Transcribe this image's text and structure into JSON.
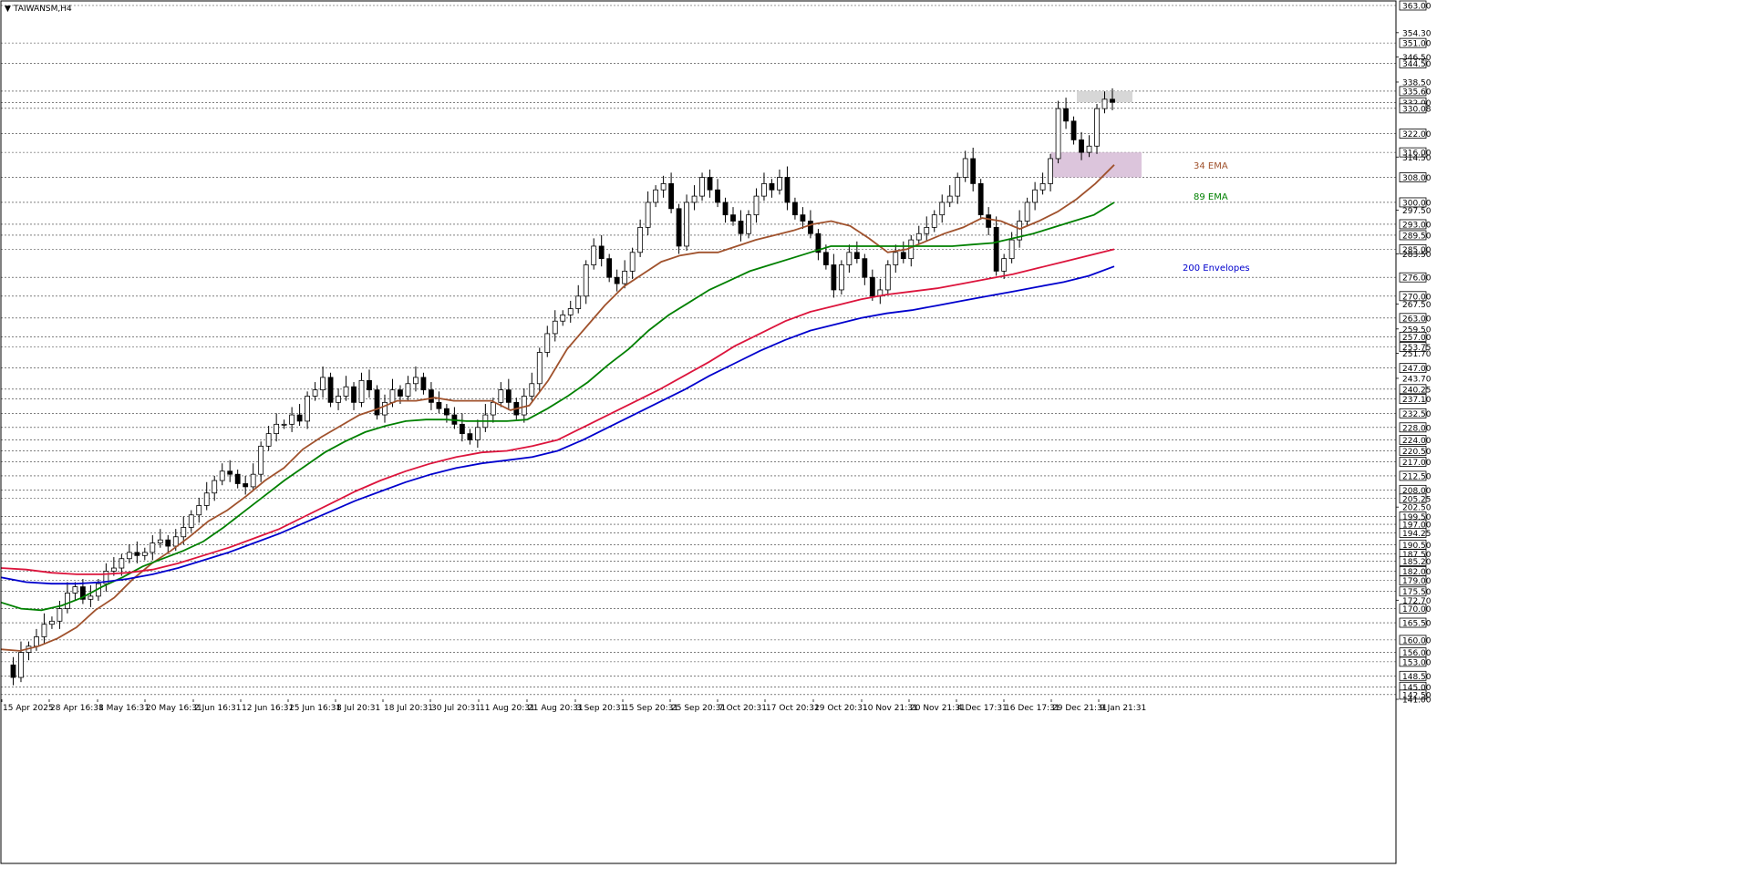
{
  "chart_data": {
    "type": "candlestick",
    "title": "TAIWANSM,H4",
    "y_range": [
      141.0,
      363.0
    ],
    "x_labels": [
      "15 Apr 2025",
      "28 Apr 16:31",
      "8 May 16:31",
      "20 May 16:31",
      "2 Jun 16:31",
      "12 Jun 16:31",
      "25 Jun 16:31",
      "8 Jul 20:31",
      "18 Jul 20:31",
      "30 Jul 20:31",
      "11 Aug 20:31",
      "21 Aug 20:31",
      "3 Sep 20:31",
      "15 Sep 20:31",
      "25 Sep 20:31",
      "7 Oct 20:31",
      "17 Oct 20:31",
      "29 Oct 20:31",
      "10 Nov 21:31",
      "20 Nov 21:31",
      "4 Dec 17:31",
      "16 Dec 17:31",
      "29 Dec 21:31",
      "9 Jan 21:31"
    ],
    "levels": [
      "363.00",
      "351.00",
      "344.50",
      "335.60",
      "332.00",
      "330.08",
      "322.00",
      "316.00",
      "308.00",
      "300.00",
      "293.00",
      "289.50",
      "285.00",
      "276.00",
      "270.00",
      "263.00",
      "257.00",
      "253.75",
      "247.00",
      "240.25",
      "237.10",
      "232.50",
      "228.00",
      "224.00",
      "220.50",
      "217.00",
      "212.50",
      "208.00",
      "205.25",
      "199.50",
      "197.00",
      "194.25",
      "190.50",
      "187.50",
      "185.20",
      "182.00",
      "179.00",
      "175.50",
      "170.00",
      "165.50",
      "160.00",
      "156.00",
      "153.00",
      "148.50",
      "145.00",
      "142.50"
    ],
    "minor_labels": [
      "354.30",
      "346.50",
      "338.50",
      "314.50",
      "297.50",
      "283.50",
      "267.50",
      "259.50",
      "251.70",
      "243.70",
      "202.50",
      "172.70",
      "141.00"
    ],
    "zones": [
      {
        "name": "resistance",
        "from": 332.0,
        "to": 335.6,
        "color": "#d3d3d3"
      },
      {
        "name": "support",
        "from": 308.0,
        "to": 316.0,
        "color": "#d8bfd8"
      }
    ],
    "series": [
      {
        "name": "34 EMA",
        "color": "#a0522d",
        "values": [
          157,
          156.5,
          158,
          160.5,
          164,
          169.5,
          173.5,
          179.5,
          184.5,
          188.5,
          193,
          198,
          201.5,
          206,
          211,
          215,
          221,
          225,
          228.5,
          232,
          234,
          236.5,
          236.5,
          237.5,
          236.5,
          236.5,
          236.5,
          233.5,
          235,
          243,
          253,
          260,
          267,
          273,
          277,
          281,
          283,
          284,
          284,
          286,
          288,
          289.5,
          291,
          293,
          294,
          292.5,
          288.5,
          284,
          285,
          287.5,
          290,
          292,
          295,
          294,
          291.5,
          294,
          297,
          301,
          306,
          312
        ]
      },
      {
        "name": "89 EMA",
        "color": "#008000",
        "values": [
          172,
          170,
          169.5,
          171,
          173.5,
          177,
          180,
          183.5,
          186,
          188.5,
          191.5,
          196,
          201,
          206,
          211,
          215.5,
          220,
          223.5,
          226.5,
          228.5,
          230,
          230.5,
          230.5,
          230,
          230,
          230,
          230.5,
          234,
          238,
          242.5,
          248,
          253,
          259,
          264,
          268,
          272,
          275,
          278,
          280,
          282,
          284,
          286,
          286,
          286,
          286,
          286,
          286,
          286,
          286.5,
          287,
          288.5,
          290,
          292,
          294,
          296,
          300
        ]
      },
      {
        "name": "200 Envelopes upper",
        "color": "#dc143c",
        "values": [
          183,
          182.5,
          181.5,
          181,
          181,
          181.5,
          182.5,
          184.5,
          187,
          189.5,
          192.5,
          195.5,
          199.5,
          203.5,
          207.5,
          211,
          214,
          216.5,
          218.5,
          220,
          220.5,
          222,
          224,
          228,
          232,
          236,
          240,
          244.5,
          249,
          254,
          258,
          262,
          265,
          267,
          269,
          270.5,
          271.5,
          272.5,
          274,
          275.5,
          277,
          279,
          281,
          283,
          285
        ]
      },
      {
        "name": "200 Envelopes",
        "color": "#0000cd",
        "values": [
          180,
          178.5,
          178,
          178,
          178.5,
          179.5,
          181,
          183,
          185.5,
          188,
          191,
          194,
          197.5,
          201,
          204.5,
          207.5,
          210.5,
          213,
          215,
          216.5,
          217.5,
          218.5,
          220.5,
          224,
          228,
          232,
          236,
          240,
          244.5,
          248.5,
          252.5,
          256,
          259,
          261,
          263,
          264.5,
          265.5,
          267,
          268.5,
          270,
          271.5,
          273,
          274.5,
          276.5,
          279.5
        ]
      }
    ],
    "annotations": [
      {
        "text": "34 EMA",
        "color": "#a0522d"
      },
      {
        "text": "89 EMA",
        "color": "#008000"
      },
      {
        "text": "200 Envelopes",
        "color": "#0000cd"
      }
    ],
    "price_path": [
      152,
      148,
      156,
      158,
      161,
      165,
      166,
      170,
      175,
      177,
      173,
      174,
      178,
      182,
      183,
      186,
      188,
      187,
      188,
      191,
      192,
      190,
      193,
      196,
      200,
      203,
      207,
      211,
      214,
      213,
      210,
      209,
      213,
      222,
      226,
      229,
      229,
      232,
      230,
      238,
      240,
      244,
      236,
      238,
      241,
      236,
      243,
      240,
      232,
      236,
      240,
      238,
      242,
      244,
      240,
      236,
      234,
      232,
      229,
      226,
      224,
      228,
      232,
      236,
      240,
      236,
      232,
      238,
      242,
      252,
      258,
      262,
      264,
      266,
      270,
      280,
      286,
      282,
      276,
      274,
      278,
      284,
      292,
      300,
      304,
      306,
      298,
      286,
      300,
      302,
      308,
      304,
      300,
      296,
      294,
      290,
      296,
      302,
      306,
      304,
      308,
      300,
      296,
      294,
      290,
      284,
      280,
      272,
      280,
      284,
      282,
      276,
      270,
      272,
      280,
      284,
      282,
      288,
      290,
      292,
      296,
      300,
      302,
      308,
      314,
      306,
      296,
      292,
      278,
      282,
      288,
      294,
      300,
      304,
      306,
      314,
      330,
      326,
      320,
      316,
      318,
      330,
      333,
      332
    ]
  }
}
